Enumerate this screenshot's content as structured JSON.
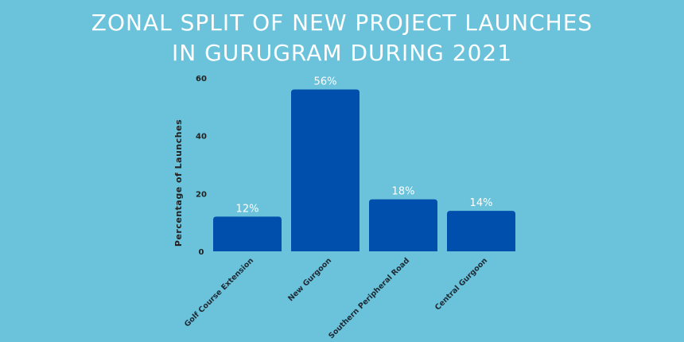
{
  "title_line1": "ZONAL SPLIT OF NEW PROJECT LAUNCHES",
  "title_line2": "IN GURUGRAM DURING 2021",
  "colors": {
    "background": "#6ac2db",
    "bar": "#004fad",
    "title": "#ffffff"
  },
  "chart_data": {
    "type": "bar",
    "title": "ZONAL SPLIT OF NEW PROJECT LAUNCHES IN GURUGRAM DURING 2021",
    "xlabel": "",
    "ylabel": "Percentage of Launches",
    "categories": [
      "Golf Course Extension",
      "New Gurgoon",
      "Southern Peripheral Road",
      "Central Gurgoon"
    ],
    "values": [
      12,
      56,
      18,
      14
    ],
    "data_labels": [
      "12%",
      "56%",
      "18%",
      "14%"
    ],
    "yticks": [
      "0",
      "20",
      "40",
      "60"
    ],
    "ylim": [
      0,
      60
    ],
    "grid": false,
    "legend": "none"
  }
}
